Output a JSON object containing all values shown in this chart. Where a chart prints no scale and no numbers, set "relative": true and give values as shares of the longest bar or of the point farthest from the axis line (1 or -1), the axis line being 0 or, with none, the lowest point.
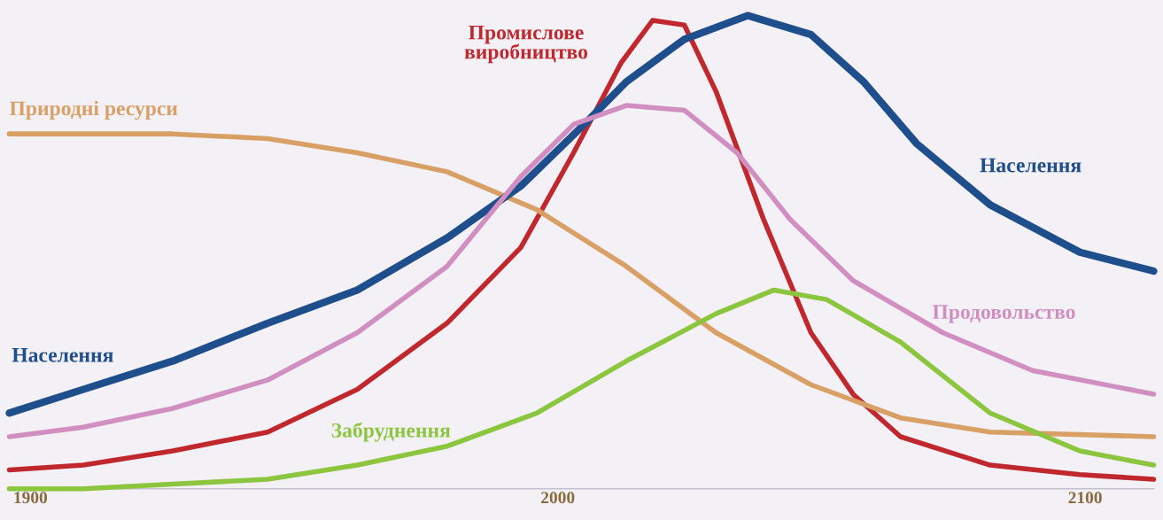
{
  "chart_data": {
    "type": "line",
    "relative": true,
    "xlim": [
      1896,
      2113
    ],
    "xticks": [
      1900,
      2000,
      2100
    ],
    "tick_labels": "x",
    "grid": false,
    "legend": false,
    "marker": "none",
    "line_style": "solid",
    "series": [
      {
        "name": "Промислове виробництво",
        "color": "#c0282d",
        "x": [
          1896,
          1910,
          1927,
          1945,
          1962,
          1979,
          1993,
          2003,
          2012,
          2018,
          2024,
          2030,
          2039,
          2048,
          2056,
          2065,
          2082,
          2099,
          2113
        ],
        "values": [
          0.04,
          0.05,
          0.08,
          0.12,
          0.21,
          0.35,
          0.51,
          0.71,
          0.9,
          0.99,
          0.98,
          0.84,
          0.57,
          0.33,
          0.2,
          0.11,
          0.05,
          0.03,
          0.02
        ]
      },
      {
        "name": "Природні ресурси",
        "color": "#d9a066",
        "x": [
          1896,
          1910,
          1927,
          1945,
          1962,
          1979,
          1996,
          2013,
          2030,
          2048,
          2065,
          2082,
          2113
        ],
        "values": [
          0.75,
          0.75,
          0.75,
          0.74,
          0.71,
          0.67,
          0.59,
          0.47,
          0.33,
          0.22,
          0.15,
          0.12,
          0.11
        ]
      },
      {
        "name": "Населення",
        "color": "#1f4e8c",
        "x": [
          1896,
          1910,
          1927,
          1945,
          1962,
          1979,
          1993,
          2005,
          2013,
          2024,
          2036,
          2048,
          2058,
          2068,
          2082,
          2099,
          2113
        ],
        "values": [
          0.16,
          0.21,
          0.27,
          0.35,
          0.42,
          0.53,
          0.64,
          0.77,
          0.86,
          0.95,
          1.0,
          0.96,
          0.86,
          0.73,
          0.6,
          0.5,
          0.46
        ]
      },
      {
        "name": "Продовольство",
        "color": "#d08fc0",
        "x": [
          1896,
          1910,
          1927,
          1945,
          1962,
          1979,
          1993,
          2003,
          2013,
          2024,
          2034,
          2044,
          2056,
          2073,
          2090,
          2113
        ],
        "values": [
          0.11,
          0.13,
          0.17,
          0.23,
          0.33,
          0.47,
          0.66,
          0.77,
          0.81,
          0.8,
          0.71,
          0.57,
          0.44,
          0.33,
          0.25,
          0.2
        ]
      },
      {
        "name": "Забруднення",
        "color": "#8cc63f",
        "x": [
          1896,
          1910,
          1927,
          1945,
          1962,
          1979,
          1996,
          2013,
          2030,
          2041,
          2051,
          2065,
          2082,
          2099,
          2113
        ],
        "values": [
          0.0,
          0.0,
          0.01,
          0.02,
          0.05,
          0.09,
          0.16,
          0.27,
          0.37,
          0.42,
          0.4,
          0.31,
          0.16,
          0.08,
          0.05
        ]
      }
    ],
    "annotations": [
      {
        "text": "Населення",
        "x": 1896,
        "y": 0.16
      }
    ]
  }
}
